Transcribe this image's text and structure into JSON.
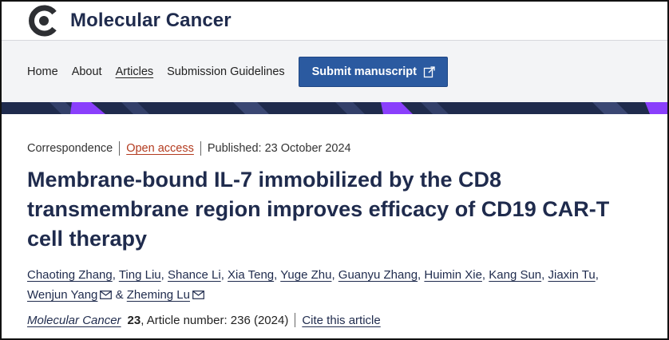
{
  "brand": {
    "name": "Molecular Cancer",
    "logo_icon": "journal-logo-icon"
  },
  "nav": {
    "links": [
      "Home",
      "About",
      "Articles",
      "Submission Guidelines"
    ],
    "active": "Articles",
    "submit_label": "Submit manuscript"
  },
  "colors": {
    "brand_navy": "#1f2b4d",
    "stripe_accent": "#8a3ffc",
    "button_blue": "#2b5aa0",
    "open_access": "#b33a1e"
  },
  "article": {
    "type": "Correspondence",
    "access": "Open access",
    "published": "Published: 23 October 2024",
    "title": "Membrane-bound IL-7 immobilized by the CD8 transmembrane region improves efficacy of CD19 CAR-T cell therapy",
    "authors": [
      "Chaoting Zhang",
      "Ting Liu",
      "Shance Li",
      "Xia Teng",
      "Yuge Zhu",
      "Guanyu Zhang",
      "Huimin Xie",
      "Kang Sun",
      "Jiaxin Tu",
      "Wenjun Yang",
      "Zheming Lu"
    ],
    "author_sep": ",",
    "author_and": "&",
    "journal": "Molecular Cancer",
    "volume": "23",
    "article_number": ", Article number: 236 (2024)",
    "cite_label": "Cite this article"
  }
}
